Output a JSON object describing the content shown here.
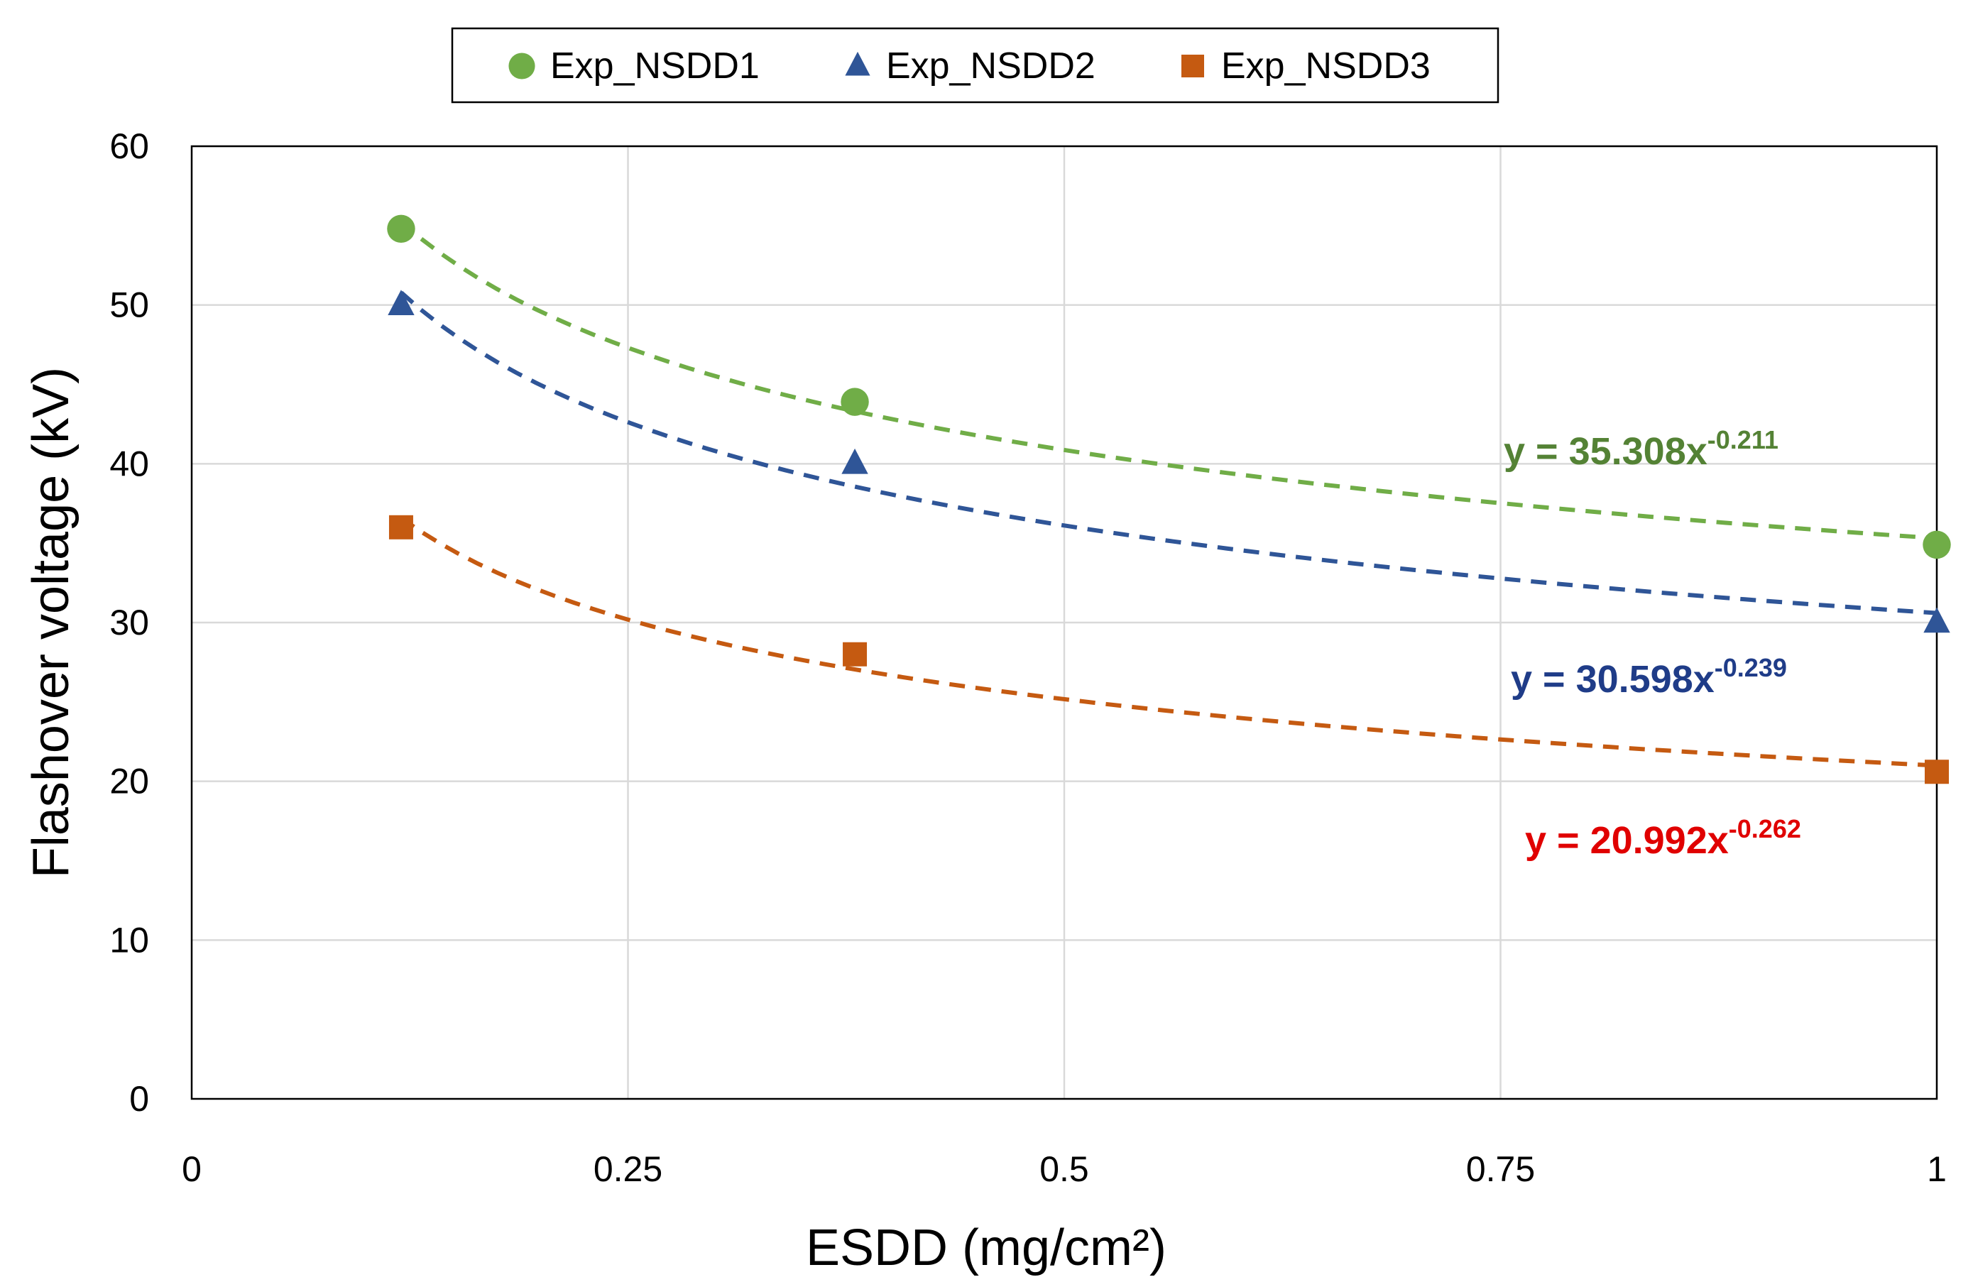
{
  "chart_data": {
    "type": "scatter",
    "title": "",
    "xlabel": "ESDD (mg/cm²)",
    "ylabel": "Flashover voltage (kV)",
    "xlim": [
      0,
      1
    ],
    "ylim": [
      0,
      60
    ],
    "x_ticks": [
      0,
      0.25,
      0.5,
      0.75,
      1
    ],
    "x_tick_labels": [
      "0",
      "0.25",
      "0.5",
      "0.75",
      "1"
    ],
    "y_ticks": [
      0,
      10,
      20,
      30,
      40,
      50,
      60
    ],
    "y_tick_labels": [
      "0",
      "10",
      "20",
      "30",
      "40",
      "50",
      "60"
    ],
    "grid": true,
    "legend_position": "top",
    "x": [
      0.12,
      0.38,
      1.0
    ],
    "series": [
      {
        "name": "Exp_NSDD1",
        "marker": "circle",
        "color": "#70AD47",
        "values": [
          54.8,
          43.9,
          34.9
        ],
        "trendline": {
          "type": "power",
          "a": 35.308,
          "b": -0.211,
          "label_main": "y = 35.308x",
          "label_exp": "-0.211",
          "label_color": "#548235"
        }
      },
      {
        "name": "Exp_NSDD2",
        "marker": "triangle",
        "color": "#2F5597",
        "values": [
          50.0,
          40.0,
          30.0
        ],
        "trendline": {
          "type": "power",
          "a": 30.598,
          "b": -0.239,
          "label_main": "y = 30.598x",
          "label_exp": "-0.239",
          "label_color": "#1F3C88"
        }
      },
      {
        "name": "Exp_NSDD3",
        "marker": "square",
        "color": "#C55A11",
        "values": [
          36.0,
          28.0,
          20.6
        ],
        "trendline": {
          "type": "power",
          "a": 20.992,
          "b": -0.262,
          "label_main": "y = 20.992x",
          "label_exp": "-0.262",
          "label_color": "#E00000"
        }
      }
    ]
  }
}
